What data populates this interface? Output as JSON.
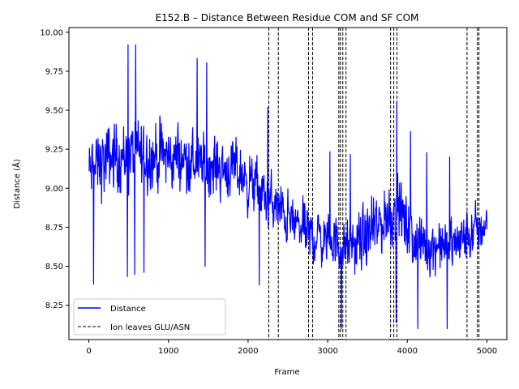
{
  "chart_data": {
    "type": "line",
    "title": "E152.B – Distance Between Residue COM and SF COM",
    "xlabel": "Frame",
    "ylabel": "Distance (Å)",
    "xlim": [
      -250,
      5250
    ],
    "ylim": [
      8.03,
      10.03
    ],
    "xticks": [
      0,
      1000,
      2000,
      3000,
      4000,
      5000
    ],
    "yticks": [
      8.25,
      8.5,
      8.75,
      9.0,
      9.25,
      9.5,
      9.75,
      10.0
    ],
    "xtick_labels": [
      "0",
      "1000",
      "2000",
      "3000",
      "4000",
      "5000"
    ],
    "ytick_labels": [
      "8.25",
      "8.50",
      "8.75",
      "9.00",
      "9.25",
      "9.50",
      "9.75",
      "10.00"
    ],
    "grid": false,
    "legend_position": "lower-left",
    "series": [
      {
        "name": "Distance",
        "color": "#0000ff",
        "style": "solid",
        "n_frames": 5000,
        "trend": [
          [
            0,
            9.1
          ],
          [
            300,
            9.2
          ],
          [
            600,
            9.22
          ],
          [
            1000,
            9.2
          ],
          [
            1500,
            9.15
          ],
          [
            1900,
            9.1
          ],
          [
            2200,
            8.95
          ],
          [
            2500,
            8.8
          ],
          [
            2800,
            8.7
          ],
          [
            3100,
            8.65
          ],
          [
            3200,
            8.6
          ],
          [
            3500,
            8.68
          ],
          [
            3800,
            8.85
          ],
          [
            3900,
            8.85
          ],
          [
            4100,
            8.65
          ],
          [
            4500,
            8.62
          ],
          [
            4800,
            8.7
          ],
          [
            4950,
            8.75
          ],
          [
            5000,
            8.8
          ]
        ],
        "amplitude": [
          [
            0,
            0.28
          ],
          [
            500,
            0.3
          ],
          [
            1500,
            0.25
          ],
          [
            2500,
            0.22
          ],
          [
            3200,
            0.22
          ],
          [
            3800,
            0.28
          ],
          [
            4300,
            0.22
          ],
          [
            5000,
            0.22
          ]
        ],
        "min": 8.1,
        "max": 9.92
      },
      {
        "name": "Ion leaves GLU/ASN",
        "color": "#000000",
        "style": "dashed",
        "events": [
          2260,
          2380,
          2760,
          2810,
          3140,
          3160,
          3190,
          3230,
          3790,
          3830,
          3870,
          4750,
          4880,
          4900
        ]
      }
    ],
    "legend": [
      {
        "label": "Distance",
        "color": "#0000ff",
        "style": "solid"
      },
      {
        "label": "Ion leaves GLU/ASN",
        "color": "#000000",
        "style": "dashed"
      }
    ]
  }
}
